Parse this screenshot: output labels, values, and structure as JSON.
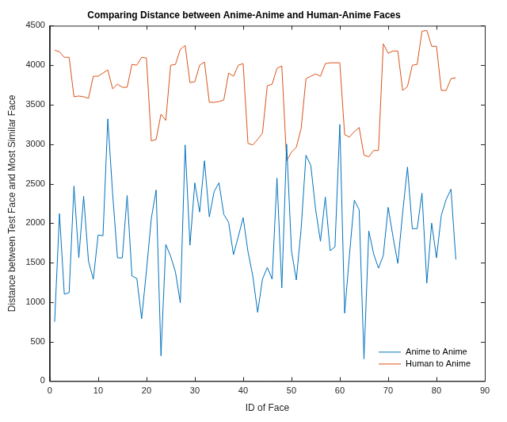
{
  "chart_data": {
    "type": "line",
    "title": "Comparing Distance between Anime-Anime and Human-Anime Faces",
    "x_label": "ID of Face",
    "y_label": "Distance between Test Face and Most Similar Face",
    "x": [
      1,
      2,
      3,
      4,
      5,
      6,
      7,
      8,
      9,
      10,
      11,
      12,
      13,
      14,
      15,
      16,
      17,
      18,
      19,
      20,
      21,
      22,
      23,
      24,
      25,
      26,
      27,
      28,
      29,
      30,
      31,
      32,
      33,
      34,
      35,
      36,
      37,
      38,
      39,
      40,
      41,
      42,
      43,
      44,
      45,
      46,
      47,
      48,
      49,
      50,
      51,
      52,
      53,
      54,
      55,
      56,
      57,
      58,
      59,
      60,
      61,
      62,
      63,
      64,
      65,
      66,
      67,
      68,
      69,
      70,
      71,
      72,
      73,
      74,
      75,
      76,
      77,
      78,
      79,
      80,
      81,
      82,
      83,
      84
    ],
    "series": [
      {
        "name": "Anime to Anime",
        "color": "#0072bd",
        "values": [
          750,
          2120,
          1100,
          1120,
          2470,
          1560,
          2340,
          1520,
          1290,
          1850,
          1840,
          3320,
          2370,
          1560,
          1560,
          2350,
          1330,
          1300,
          790,
          1400,
          2060,
          2420,
          320,
          1730,
          1580,
          1380,
          990,
          2990,
          1720,
          2510,
          2140,
          2790,
          2080,
          2400,
          2510,
          2110,
          2010,
          1600,
          1830,
          2070,
          1640,
          1330,
          870,
          1290,
          1440,
          1290,
          2570,
          1180,
          3000,
          1650,
          1280,
          1930,
          2860,
          2730,
          2170,
          1770,
          2330,
          1650,
          1700,
          3250,
          860,
          1600,
          2290,
          2170,
          280,
          1900,
          1610,
          1430,
          1590,
          2200,
          1830,
          1490,
          2130,
          2710,
          1930,
          1930,
          2380,
          1240,
          2000,
          1560,
          2100,
          2300,
          2430,
          1540
        ]
      },
      {
        "name": "Human to Anime",
        "color": "#d95319",
        "values": [
          4190,
          4170,
          4100,
          4100,
          3600,
          3610,
          3600,
          3580,
          3860,
          3860,
          3900,
          3940,
          3700,
          3760,
          3720,
          3720,
          4010,
          4000,
          4100,
          4090,
          3040,
          3060,
          3380,
          3300,
          4000,
          4010,
          4200,
          4250,
          3780,
          3790,
          4000,
          4040,
          3530,
          3530,
          3540,
          3560,
          3900,
          3860,
          4000,
          4020,
          3010,
          2990,
          3060,
          3140,
          3740,
          3760,
          3960,
          3990,
          2790,
          2900,
          2960,
          3200,
          3830,
          3860,
          3890,
          3860,
          4020,
          4030,
          4030,
          4030,
          3120,
          3090,
          3160,
          3210,
          2860,
          2840,
          2920,
          2920,
          4270,
          4150,
          4180,
          4180,
          3680,
          3730,
          4000,
          4010,
          4430,
          4440,
          4240,
          4240,
          3680,
          3680,
          3830,
          3840
        ]
      }
    ],
    "xlim": [
      0,
      90
    ],
    "xticks": [
      0,
      10,
      20,
      30,
      40,
      50,
      60,
      70,
      80,
      90
    ],
    "ylim": [
      0,
      4500
    ],
    "yticks": [
      0,
      500,
      1000,
      1500,
      2000,
      2500,
      3000,
      3500,
      4000,
      4500
    ],
    "grid": false,
    "legend": "bottom-right"
  }
}
